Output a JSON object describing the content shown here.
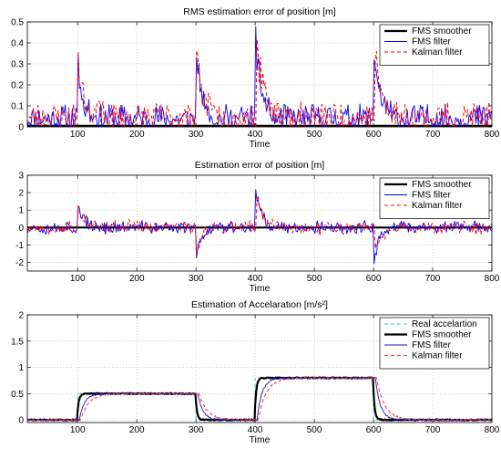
{
  "chart_data": [
    {
      "type": "line",
      "title": "RMS estimation error of position [m]",
      "xlabel": "Time",
      "ylabel": "",
      "xlim": [
        15,
        800
      ],
      "ylim": [
        0,
        0.5
      ],
      "xticks": [
        100,
        200,
        300,
        400,
        500,
        600,
        700,
        800
      ],
      "yticks": [
        0,
        0.1,
        0.2,
        0.3,
        0.4,
        0.5
      ],
      "ytick_labels": [
        "0",
        "0.1",
        "0.2",
        "0.3",
        "0.4",
        "0.5"
      ],
      "grid": true,
      "legend": "top-right",
      "series": [
        {
          "name": "FMS smoother",
          "color": "#000000",
          "style": "solid-thick",
          "kind": "flat",
          "values": [
            [
              15,
              0.005
            ],
            [
              800,
              0.005
            ]
          ]
        },
        {
          "name": "FMS filter",
          "color": "#0000ff",
          "style": "solid",
          "kind": "noise",
          "base": 0.0,
          "amp": 0.11,
          "spikes": [
            [
              100,
              0.3,
              8
            ],
            [
              300,
              0.39,
              8
            ],
            [
              400,
              0.44,
              10
            ],
            [
              600,
              0.41,
              10
            ]
          ],
          "seed": 11
        },
        {
          "name": "Kalman filter",
          "color": "#ff0000",
          "style": "dashed",
          "kind": "noise",
          "base": 0.0,
          "amp": 0.12,
          "spikes": [
            [
              101,
              0.3,
              10
            ],
            [
              301,
              0.35,
              10
            ],
            [
              402,
              0.43,
              11
            ],
            [
              602,
              0.38,
              11
            ]
          ],
          "seed": 23
        }
      ]
    },
    {
      "type": "line",
      "title": "Estimation error of position [m]",
      "xlabel": "Time",
      "ylabel": "",
      "xlim": [
        15,
        800
      ],
      "ylim": [
        -2.5,
        3
      ],
      "xticks": [
        100,
        200,
        300,
        400,
        500,
        600,
        700,
        800
      ],
      "yticks": [
        -2,
        -1,
        0,
        1,
        2,
        3
      ],
      "ytick_labels": [
        "-2",
        "-1",
        "0",
        "1",
        "2",
        "3"
      ],
      "grid": true,
      "legend": "top-right",
      "series": [
        {
          "name": "FMS smoother",
          "color": "#000000",
          "style": "solid-thick",
          "kind": "flat",
          "values": [
            [
              15,
              0.0
            ],
            [
              800,
              0.0
            ]
          ]
        },
        {
          "name": "FMS filter",
          "color": "#0000ff",
          "style": "solid",
          "kind": "bipolar",
          "amp": 0.45,
          "spikes": [
            [
              100,
              1.75,
              8
            ],
            [
              300,
              -2.1,
              8
            ],
            [
              400,
              2.4,
              10
            ],
            [
              600,
              -2.2,
              10
            ]
          ],
          "seed": 37
        },
        {
          "name": "Kalman filter",
          "color": "#ff0000",
          "style": "dashed",
          "kind": "bipolar",
          "amp": 0.5,
          "spikes": [
            [
              101,
              1.5,
              10
            ],
            [
              301,
              -1.6,
              10
            ],
            [
              402,
              2.0,
              11
            ],
            [
              602,
              -1.5,
              11
            ]
          ],
          "seed": 53
        }
      ]
    },
    {
      "type": "line",
      "title": "Estimation of Accelaration [m/s²]",
      "xlabel": "Time",
      "ylabel": "",
      "xlim": [
        15,
        800
      ],
      "ylim": [
        -0.05,
        2
      ],
      "xticks": [
        100,
        200,
        300,
        400,
        500,
        600,
        700,
        800
      ],
      "yticks": [
        0,
        0.5,
        1,
        1.5,
        2
      ],
      "ytick_labels": [
        "0",
        "0.5",
        "1",
        "1.5",
        "2"
      ],
      "grid": true,
      "legend": "top-right",
      "series": [
        {
          "name": "Real accelartion",
          "color": "#33cccc",
          "style": "dashed",
          "kind": "steps",
          "values": [
            [
              15,
              0
            ],
            [
              100,
              0
            ],
            [
              100,
              0.5
            ],
            [
              300,
              0.5
            ],
            [
              300,
              0
            ],
            [
              400,
              0
            ],
            [
              400,
              0.8
            ],
            [
              600,
              0.8
            ],
            [
              600,
              0
            ],
            [
              800,
              0
            ]
          ]
        },
        {
          "name": "FMS smoother",
          "color": "#000000",
          "style": "solid-thick",
          "kind": "smooth-steps",
          "levels": [
            [
              15,
              0
            ],
            [
              100,
              0.5
            ],
            [
              300,
              0
            ],
            [
              400,
              0.8
            ],
            [
              600,
              0
            ],
            [
              800,
              0
            ]
          ],
          "tau": 3,
          "lag": 0,
          "noise": 0.01,
          "seed": 71
        },
        {
          "name": "FMS filter",
          "color": "#1a1acc",
          "style": "solid",
          "kind": "smooth-steps",
          "levels": [
            [
              15,
              0
            ],
            [
              100,
              0.5
            ],
            [
              300,
              0
            ],
            [
              400,
              0.8
            ],
            [
              600,
              0
            ],
            [
              800,
              0
            ]
          ],
          "tau": 9,
          "lag": 4,
          "noise": 0.015,
          "seed": 83
        },
        {
          "name": "Kalman filter",
          "color": "#ff3333",
          "style": "dashed",
          "kind": "smooth-steps",
          "levels": [
            [
              15,
              0
            ],
            [
              100,
              0.5
            ],
            [
              300,
              0
            ],
            [
              400,
              0.8
            ],
            [
              600,
              0
            ],
            [
              800,
              0
            ]
          ],
          "tau": 14,
          "lag": 6,
          "noise": 0.015,
          "seed": 97
        }
      ]
    }
  ]
}
